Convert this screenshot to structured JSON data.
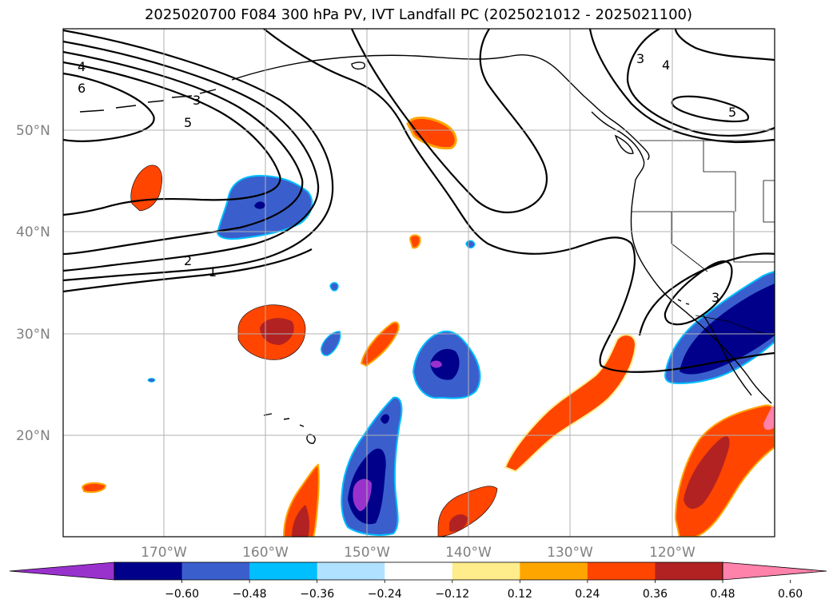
{
  "title": "2025020700 F084 300 hPa PV, IVT Landfall PC (2025021012 - 2025021100)",
  "lat_labels": [
    "50°N",
    "40°N",
    "30°N",
    "20°N"
  ],
  "lon_labels": [
    "170°W",
    "160°W",
    "150°W",
    "140°W",
    "130°W",
    "120°W"
  ],
  "colorbar": {
    "colors": [
      "#9932cc",
      "#00008b",
      "#3a5fcd",
      "#00bfff",
      "#b0e2ff",
      "#ffffff",
      "#ffec8b",
      "#ffa500",
      "#ff4500",
      "#b22222",
      "#ff82ab"
    ],
    "tick_labels": [
      "−0.60",
      "−0.48",
      "−0.36",
      "−0.24",
      "−0.12",
      "0.12",
      "0.24",
      "0.36",
      "0.48",
      "0.60"
    ]
  },
  "contour_labels": [
    "4",
    "6",
    "3",
    "5",
    "2",
    "1",
    "3",
    "4",
    "5",
    "3"
  ],
  "fill_colors": {
    "pos_outer": "#ffec8b",
    "pos_mid": "#ffa500",
    "pos_main": "#ff4500",
    "pos_core": "#b22222",
    "neg_outer": "#b0e2ff",
    "neg_mid": "#00bfff",
    "neg_main": "#3a5fcd",
    "neg_core": "#00008b",
    "neg_peak": "#9932cc"
  }
}
